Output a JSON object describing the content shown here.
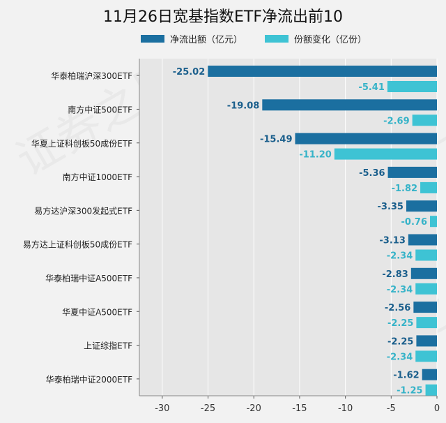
{
  "watermark": "证券之星",
  "chart_data": {
    "type": "bar",
    "orientation": "horizontal",
    "title": "11月26日宽基指数ETF净流出前10",
    "categories": [
      "华泰柏瑞沪深300ETF",
      "南方中证500ETF",
      "华夏上证科创板50成份ETF",
      "南方中证1000ETF",
      "易方达沪深300发起式ETF",
      "易方达上证科创板50成份ETF",
      "华泰柏瑞中证A500ETF",
      "华夏中证A500ETF",
      "上证综指ETF",
      "华泰柏瑞中证2000ETF"
    ],
    "series": [
      {
        "name": "净流出额（亿元）",
        "color": "#1b6fa0",
        "label_color": "#1b5f8c",
        "values": [
          -25.02,
          -19.08,
          -15.49,
          -5.36,
          -3.35,
          -3.13,
          -2.83,
          -2.56,
          -2.25,
          -1.62
        ],
        "labels": [
          "-25.02",
          "-19.08",
          "-15.49",
          "-5.36",
          "-3.35",
          "-3.13",
          "-2.83",
          "-2.56",
          "-2.25",
          "-1.62"
        ]
      },
      {
        "name": "份额变化（亿份）",
        "color": "#3ec3d4",
        "label_color": "#36b3c8",
        "values": [
          -5.41,
          -2.69,
          -11.2,
          -1.82,
          -0.76,
          -2.34,
          -2.34,
          -2.25,
          -2.34,
          -1.25
        ],
        "labels": [
          "-5.41",
          "-2.69",
          "-11.20",
          "-1.82",
          "-0.76",
          "-2.34",
          "-2.34",
          "-2.25",
          "-2.34",
          "-1.25"
        ]
      }
    ],
    "xlim": [
      -32.5,
      0
    ],
    "xticks": [
      -30,
      -25,
      -20,
      -15,
      -10,
      -5,
      0
    ],
    "grid": true,
    "legend": "top-center",
    "plot_background": "#e6e6e6"
  }
}
